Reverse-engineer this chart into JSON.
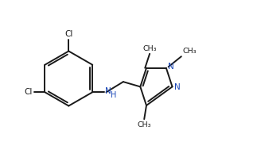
{
  "background": "#ffffff",
  "bond_color": "#1a1a1a",
  "atom_color_N": "#1a47b8",
  "atom_color_Cl": "#1a1a1a",
  "figsize": [
    3.28,
    1.98
  ],
  "dpi": 100,
  "xlim": [
    0,
    9.5
  ],
  "ylim": [
    0,
    5.5
  ]
}
